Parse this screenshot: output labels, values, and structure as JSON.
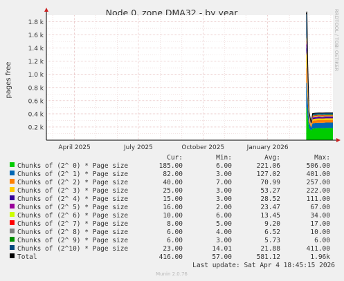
{
  "title": "Node 0, zone DMA32 - by year",
  "ylabel": "pages free",
  "watermark": "RRDTOOL / TOBI OETIKER",
  "footer": "Munin 2.0.76",
  "last_update": "Last update: Sat Apr  4 18:45:15 2026",
  "legend_headers": {
    "cur": "Cur:",
    "min": "Min:",
    "avg": "Avg:",
    "max": "Max:"
  },
  "colors": {
    "background": "#f0f0f0",
    "plot_bg": "#ffffff",
    "grid_minor": "#e6c8c8",
    "grid_major": "#e0b0b0",
    "axis": "#000000",
    "arrow": "#cc2222"
  },
  "legend": [
    {
      "label": "Chunks of (2^ 0) * Page size",
      "color": "#00cc00",
      "cur": "185.00",
      "min": "6.00",
      "avg": "221.06",
      "max": "506.00"
    },
    {
      "label": "Chunks of (2^ 1) * Page size",
      "color": "#0066b3",
      "cur": "82.00",
      "min": "3.00",
      "avg": "127.02",
      "max": "401.00"
    },
    {
      "label": "Chunks of (2^ 2) * Page size",
      "color": "#ff8000",
      "cur": "40.00",
      "min": "7.00",
      "avg": "70.99",
      "max": "257.00"
    },
    {
      "label": "Chunks of (2^ 3) * Page size",
      "color": "#ffcc00",
      "cur": "25.00",
      "min": "3.00",
      "avg": "53.27",
      "max": "222.00"
    },
    {
      "label": "Chunks of (2^ 4) * Page size",
      "color": "#330099",
      "cur": "15.00",
      "min": "3.00",
      "avg": "28.52",
      "max": "111.00"
    },
    {
      "label": "Chunks of (2^ 5) * Page size",
      "color": "#990099",
      "cur": "16.00",
      "min": "2.00",
      "avg": "23.47",
      "max": "67.00"
    },
    {
      "label": "Chunks of (2^ 6) * Page size",
      "color": "#ccff00",
      "cur": "10.00",
      "min": "6.00",
      "avg": "13.45",
      "max": "34.00"
    },
    {
      "label": "Chunks of (2^ 7) * Page size",
      "color": "#ff0000",
      "cur": "8.00",
      "min": "5.00",
      "avg": "9.20",
      "max": "17.00"
    },
    {
      "label": "Chunks of (2^ 8) * Page size",
      "color": "#808080",
      "cur": "6.00",
      "min": "4.00",
      "avg": "6.52",
      "max": "10.00"
    },
    {
      "label": "Chunks of (2^ 9) * Page size",
      "color": "#008f00",
      "cur": "6.00",
      "min": "3.00",
      "avg": "5.73",
      "max": "6.00"
    },
    {
      "label": "Chunks of (2^10) * Page size",
      "color": "#00487d",
      "cur": "23.00",
      "min": "14.01",
      "avg": "21.88",
      "max": "411.00"
    },
    {
      "label": "Total",
      "color": "#000000",
      "cur": "416.00",
      "min": "57.00",
      "avg": "581.12",
      "max": "1.96k"
    }
  ],
  "chart_data": {
    "type": "area",
    "title": "Node 0, zone DMA32 - by year",
    "ylabel": "pages free",
    "xlabel": "",
    "ylim": [
      0,
      1900
    ],
    "y_ticks": [
      200,
      400,
      600,
      800,
      1000,
      1200,
      1400,
      1600,
      1800
    ],
    "y_tick_labels": [
      "0.2 k",
      "0.4 k",
      "0.6 k",
      "0.8 k",
      "1.0 k",
      "1.2 k",
      "1.4 k",
      "1.6 k",
      "1.8 k"
    ],
    "x_range": [
      "2025-02-20",
      "2026-04-04"
    ],
    "x_ticks": [
      "2025-04-01",
      "2025-07-01",
      "2025-10-01",
      "2026-01-01"
    ],
    "x_tick_labels": [
      "April 2025",
      "July 2025",
      "October 2025",
      "January 2026"
    ],
    "stacked": true,
    "series": [
      {
        "name": "Chunks of (2^ 0) * Page size",
        "x": [
          "2026-02-25",
          "2026-02-26",
          "2026-02-27",
          "2026-03-01",
          "2026-03-04",
          "2026-03-06",
          "2026-03-10",
          "2026-03-15",
          "2026-03-20",
          "2026-03-25",
          "2026-04-04"
        ],
        "y": [
          506,
          480,
          360,
          180,
          150,
          175,
          180,
          185,
          180,
          185,
          185
        ]
      },
      {
        "name": "Chunks of (2^ 1) * Page size",
        "x": [
          "2026-02-25",
          "2026-02-26",
          "2026-02-27",
          "2026-03-01",
          "2026-03-04",
          "2026-03-06",
          "2026-03-10",
          "2026-03-15",
          "2026-03-20",
          "2026-03-25",
          "2026-04-04"
        ],
        "y": [
          360,
          401,
          250,
          90,
          40,
          80,
          82,
          80,
          84,
          82,
          82
        ]
      },
      {
        "name": "Chunks of (2^ 2) * Page size",
        "x": [
          "2026-02-25",
          "2026-02-26",
          "2026-02-27",
          "2026-03-01",
          "2026-03-04",
          "2026-03-06",
          "2026-03-10",
          "2026-03-15",
          "2026-03-20",
          "2026-03-25",
          "2026-04-04"
        ],
        "y": [
          220,
          257,
          140,
          45,
          20,
          40,
          40,
          41,
          40,
          40,
          40
        ]
      },
      {
        "name": "Chunks of (2^ 3) * Page size",
        "x": [
          "2026-02-25",
          "2026-02-26",
          "2026-02-27",
          "2026-03-01",
          "2026-03-04",
          "2026-03-06",
          "2026-03-10",
          "2026-03-15",
          "2026-03-20",
          "2026-03-25",
          "2026-04-04"
        ],
        "y": [
          200,
          222,
          120,
          28,
          10,
          24,
          25,
          25,
          25,
          25,
          25
        ]
      },
      {
        "name": "Chunks of (2^ 4) * Page size",
        "x": [
          "2026-02-25",
          "2026-02-26",
          "2026-02-27",
          "2026-03-01",
          "2026-03-04",
          "2026-03-06",
          "2026-03-10",
          "2026-03-15",
          "2026-03-20",
          "2026-03-25",
          "2026-04-04"
        ],
        "y": [
          100,
          111,
          60,
          16,
          5,
          15,
          15,
          15,
          15,
          15,
          15
        ]
      },
      {
        "name": "Chunks of (2^ 5) * Page size",
        "x": [
          "2026-02-25",
          "2026-02-26",
          "2026-02-27",
          "2026-03-01",
          "2026-03-04",
          "2026-03-06",
          "2026-03-10",
          "2026-03-15",
          "2026-03-20",
          "2026-03-25",
          "2026-04-04"
        ],
        "y": [
          60,
          67,
          40,
          16,
          5,
          16,
          16,
          16,
          16,
          16,
          16
        ]
      },
      {
        "name": "Chunks of (2^ 6) * Page size",
        "x": [
          "2026-02-25",
          "2026-02-26",
          "2026-02-27",
          "2026-03-01",
          "2026-03-04",
          "2026-03-06",
          "2026-03-10",
          "2026-03-15",
          "2026-03-20",
          "2026-03-25",
          "2026-04-04"
        ],
        "y": [
          30,
          34,
          20,
          10,
          6,
          10,
          10,
          10,
          10,
          10,
          10
        ]
      },
      {
        "name": "Chunks of (2^ 7) * Page size",
        "x": [
          "2026-02-25",
          "2026-02-26",
          "2026-02-27",
          "2026-03-01",
          "2026-03-04",
          "2026-03-06",
          "2026-03-10",
          "2026-03-15",
          "2026-03-20",
          "2026-03-25",
          "2026-04-04"
        ],
        "y": [
          15,
          17,
          12,
          8,
          5,
          8,
          8,
          8,
          8,
          8,
          8
        ]
      },
      {
        "name": "Chunks of (2^ 8) * Page size",
        "x": [
          "2026-02-25",
          "2026-02-26",
          "2026-02-27",
          "2026-03-01",
          "2026-03-04",
          "2026-03-06",
          "2026-03-10",
          "2026-03-15",
          "2026-03-20",
          "2026-03-25",
          "2026-04-04"
        ],
        "y": [
          9,
          10,
          8,
          6,
          4,
          6,
          6,
          6,
          6,
          6,
          6
        ]
      },
      {
        "name": "Chunks of (2^ 9) * Page size",
        "x": [
          "2026-02-25",
          "2026-02-26",
          "2026-02-27",
          "2026-03-01",
          "2026-03-04",
          "2026-03-06",
          "2026-03-10",
          "2026-03-15",
          "2026-03-20",
          "2026-03-25",
          "2026-04-04"
        ],
        "y": [
          6,
          6,
          6,
          6,
          3,
          6,
          6,
          6,
          6,
          6,
          6
        ]
      },
      {
        "name": "Chunks of (2^10) * Page size",
        "x": [
          "2026-02-25",
          "2026-02-26",
          "2026-02-27",
          "2026-03-01",
          "2026-03-04",
          "2026-03-06",
          "2026-03-10",
          "2026-03-15",
          "2026-03-20",
          "2026-03-25",
          "2026-04-04"
        ],
        "y": [
          411,
          350,
          200,
          30,
          15,
          23,
          23,
          23,
          23,
          23,
          23
        ]
      }
    ]
  }
}
